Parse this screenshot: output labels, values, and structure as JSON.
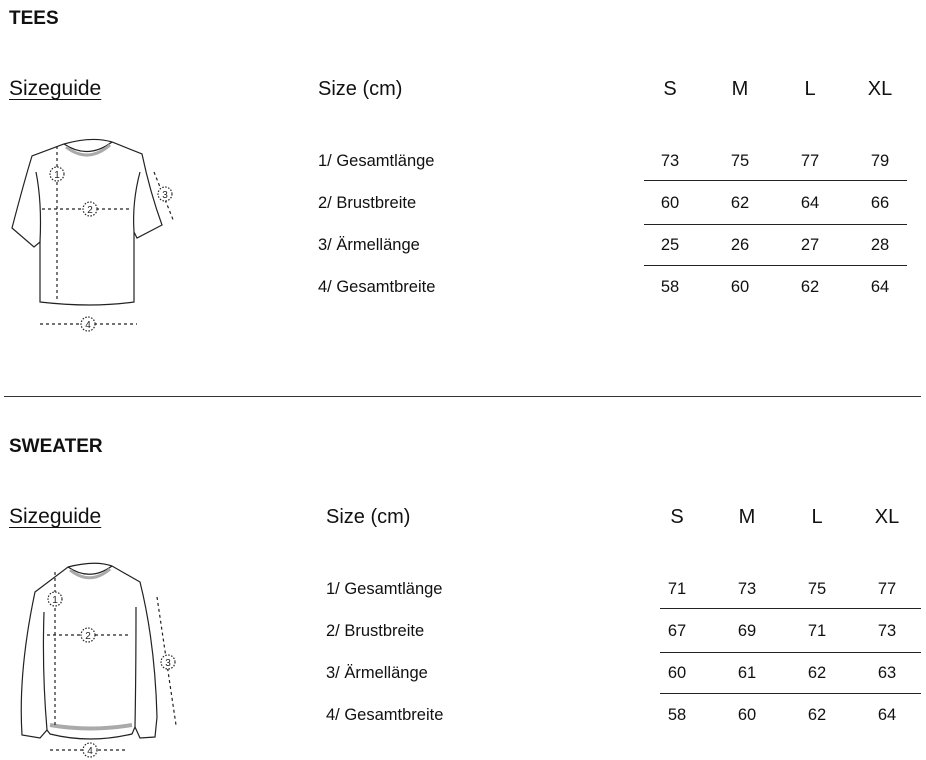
{
  "sections": [
    {
      "title": "TEES",
      "sizeguide": "Sizeguide",
      "size_header": "Size (cm)",
      "sizes": [
        "S",
        "M",
        "L",
        "XL"
      ],
      "rows": [
        {
          "label": "1/ Gesamtlänge",
          "values": [
            "73",
            "75",
            "77",
            "79"
          ]
        },
        {
          "label": "2/ Brustbreite",
          "values": [
            "60",
            "62",
            "64",
            "66"
          ]
        },
        {
          "label": "3/ Ärmellänge",
          "values": [
            "25",
            "26",
            "27",
            "28"
          ]
        },
        {
          "label": "4/ Gesamtbreite",
          "values": [
            "58",
            "60",
            "62",
            "64"
          ]
        }
      ],
      "illustration": "tshirt-diagram",
      "markers": [
        "1",
        "2",
        "3",
        "4"
      ]
    },
    {
      "title": "SWEATER",
      "sizeguide": "Sizeguide",
      "size_header": "Size (cm)",
      "sizes": [
        "S",
        "M",
        "L",
        "XL"
      ],
      "rows": [
        {
          "label": "1/ Gesamtlänge",
          "values": [
            "71",
            "73",
            "75",
            "77"
          ]
        },
        {
          "label": "2/ Brustbreite",
          "values": [
            "67",
            "69",
            "71",
            "73"
          ]
        },
        {
          "label": "3/ Ärmellänge",
          "values": [
            "60",
            "61",
            "62",
            "63"
          ]
        },
        {
          "label": "4/ Gesamtbreite",
          "values": [
            "58",
            "60",
            "62",
            "64"
          ]
        }
      ],
      "illustration": "sweater-diagram",
      "markers": [
        "1",
        "2",
        "3",
        "4"
      ]
    }
  ]
}
